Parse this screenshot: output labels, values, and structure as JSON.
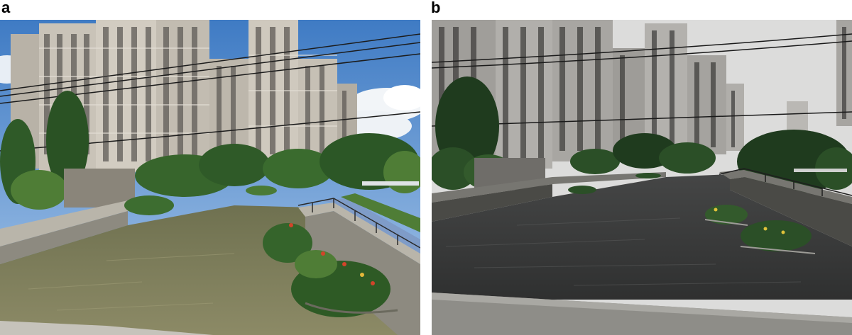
{
  "panels": [
    {
      "label": "a",
      "scene": "sunny-canal",
      "colors": {
        "sky": "#4f86c9",
        "sky_light": "#9cc0e6",
        "cloud": "#f2f5f8",
        "building": "#c9c3b8",
        "building_shade": "#8f8a83",
        "window": "#5f5b57",
        "trees": "#2f5a28",
        "trees_light": "#4f7d36",
        "water": "#7c7c58",
        "water_light": "#9a9872",
        "wall": "#8d8a80",
        "wall_top": "#b9b5aa",
        "flower": "#d2442a",
        "walkway": "#7f9cc8"
      }
    },
    {
      "label": "b",
      "scene": "overcast-rainy-canal",
      "colors": {
        "sky": "#d9d9d8",
        "sky_light": "#e6e6e5",
        "building": "#a8a6a2",
        "building_shade": "#6f6d6a",
        "window": "#3a3937",
        "trees": "#1f3b1e",
        "trees_light": "#335a2c",
        "water": "#3a3b3b",
        "water_light": "#525353",
        "wall": "#4a4a46",
        "wall_top": "#777671",
        "flower": "#e0c23a",
        "walkway": "#5a5c5c"
      }
    }
  ]
}
